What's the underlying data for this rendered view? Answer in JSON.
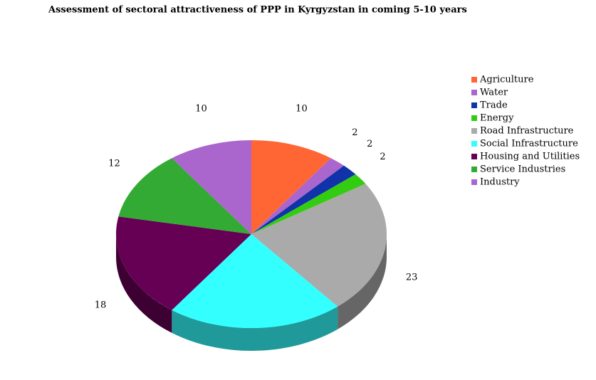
{
  "chart_data": {
    "type": "pie3d",
    "title": "Assessment of sectoral attractiveness of PPP in Kyrgyzstan in coming 5-10 years",
    "categories": [
      "Agriculture",
      "Water",
      "Trade",
      "Energy",
      "Road Infrastructure",
      "Social Infrastructure",
      "Housing and Utilities",
      "Service Industries",
      "Industry"
    ],
    "values": [
      10,
      2,
      2,
      2,
      23,
      21,
      18,
      12,
      10
    ],
    "colors": [
      "#ff6633",
      "#aa66cc",
      "#1133aa",
      "#33cc11",
      "#aaaaaa",
      "#33ffff",
      "#660055",
      "#33aa33",
      "#aa66cc"
    ],
    "legend": "right"
  }
}
